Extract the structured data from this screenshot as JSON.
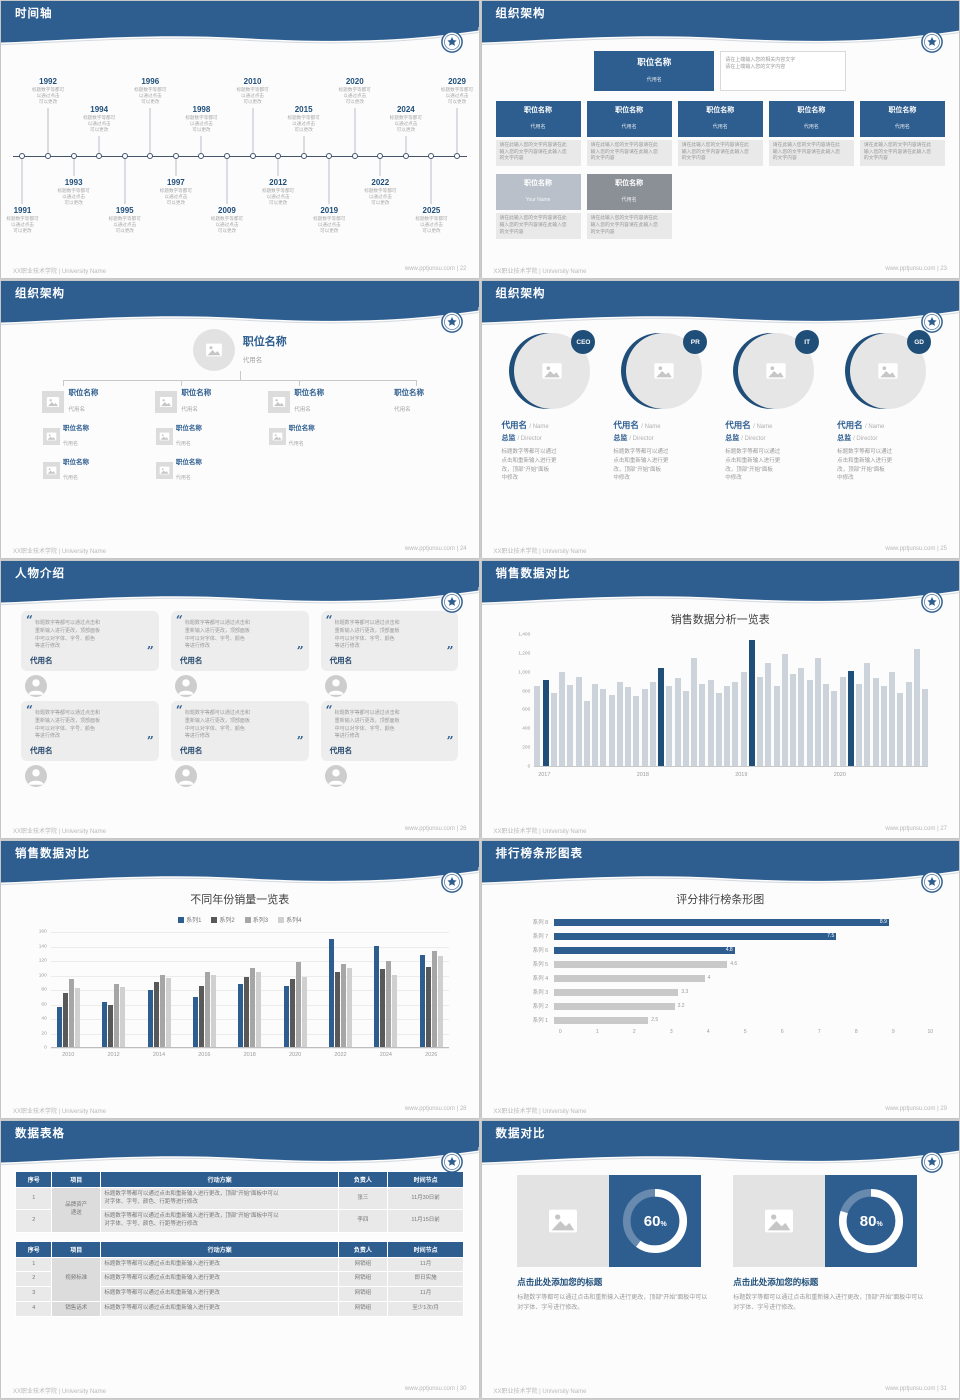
{
  "theme": {
    "header_blue": "#2e5e8f",
    "dark_blue": "#1f4e79",
    "bar_gray": "#ccd3da"
  },
  "footer": {
    "school": "XX职业技术学院 | University Name",
    "site": "www.pptjunsu.com",
    "sep": " | "
  },
  "slides": {
    "timeline": {
      "title": "时间轴",
      "page": "22",
      "desc": "标题数字等都可\n以通过点击\n可以更改",
      "top_years": [
        "1992",
        "1994",
        "1996",
        "1998",
        "2010",
        "2015",
        "2020",
        "2024",
        "2029"
      ],
      "bottom_years": [
        "1991",
        "1993",
        "1995",
        "1997",
        "2009",
        "2012",
        "2019",
        "2022",
        "2025"
      ]
    },
    "org_boxes": {
      "title": "组织架构",
      "page": "23",
      "root": {
        "name": "职位名称",
        "sub": "代用名"
      },
      "root_note": "请在上端输入您的相关内容文字\n请在上端输入您的文字内容",
      "row1": [
        {
          "name": "职位名称",
          "sub": "代用名"
        },
        {
          "name": "职位名称",
          "sub": "代用名"
        },
        {
          "name": "职位名称",
          "sub": "代用名"
        },
        {
          "name": "职位名称",
          "sub": "代用名"
        },
        {
          "name": "职位名称",
          "sub": "代用名"
        }
      ],
      "row2": [
        {
          "name": "职位名称",
          "sub": "Your Name"
        },
        {
          "name": "职位名称",
          "sub": "代用名"
        }
      ],
      "note": "请在此输入您的文字内容请在此\n输入您的文字内容请在此输入您\n的文字内容"
    },
    "org_tree": {
      "title": "组织架构",
      "page": "24",
      "root": {
        "name": "职位名称",
        "sub": "代用名"
      },
      "columns": [
        {
          "name": "职位名称",
          "sub": "代用名",
          "icon": true,
          "children": [
            {
              "name": "职位名称",
              "sub": "代用名"
            },
            {
              "name": "职位名称",
              "sub": "代用名"
            }
          ]
        },
        {
          "name": "职位名称",
          "sub": "代用名",
          "icon": true,
          "children": [
            {
              "name": "职位名称",
              "sub": "代用名"
            },
            {
              "name": "职位名称",
              "sub": "代用名"
            }
          ]
        },
        {
          "name": "职位名称",
          "sub": "代用名",
          "icon": true,
          "children": [
            {
              "name": "职位名称",
              "sub": "代用名"
            }
          ]
        },
        {
          "name": "职位名称",
          "sub": "代用名",
          "icon": false,
          "children": []
        }
      ]
    },
    "org_circles": {
      "title": "组织架构",
      "page": "25",
      "desc": "标题数字等都可以通过\n点击和重新输入进行更\n改，顶部“开始”面板\n中修改",
      "members": [
        {
          "badge": "CEO",
          "name": "代用名",
          "name_en": "Name",
          "role": "总监",
          "role_en": "Director"
        },
        {
          "badge": "PR",
          "name": "代用名",
          "name_en": "Name",
          "role": "总监",
          "role_en": "Director"
        },
        {
          "badge": "IT",
          "name": "代用名",
          "name_en": "Name",
          "role": "总监",
          "role_en": "Director"
        },
        {
          "badge": "GD",
          "name": "代用名",
          "name_en": "Name",
          "role": "总监",
          "role_en": "Director"
        }
      ]
    },
    "people": {
      "title": "人物介绍",
      "page": "26",
      "quote": "标题数字等都可以通过点击和\n重新输入进行更改，顶部面板\n中可以对字体、字号、颜色\n等进行修改",
      "cards": [
        {
          "name": "代用名"
        },
        {
          "name": "代用名"
        },
        {
          "name": "代用名"
        },
        {
          "name": "代用名"
        },
        {
          "name": "代用名"
        },
        {
          "name": "代用名"
        }
      ]
    },
    "sales_monthly": {
      "title": "销售数据对比",
      "page": "27"
    },
    "sales_yearly": {
      "title": "销售数据对比",
      "page": "28"
    },
    "ranking": {
      "title": "排行榜条形图表",
      "page": "29"
    },
    "tables": {
      "title": "数据表格",
      "page": "30",
      "headers": [
        "序号",
        "项目",
        "行动方案",
        "负责人",
        "时间节点"
      ],
      "table1": {
        "group": "品牌资产\n递送",
        "plan": "标题数字等都可以通过点击和重新输入进行更改，顶部“开始”面板中可以\n对字体、字号、颜色、行距等进行修改",
        "rows": [
          {
            "no": "1",
            "owner": "张三",
            "time": "11月30日前"
          },
          {
            "no": "2",
            "owner": "李四",
            "time": "11月15日前"
          }
        ]
      },
      "table2": {
        "plan": "标题数字等都可以通过点击和重新输入进行更改",
        "groups": [
          {
            "label": "视频标准",
            "span": 3
          },
          {
            "label": "销售话术",
            "span": 1
          }
        ],
        "rows": [
          {
            "no": "1",
            "owner": "网销组",
            "time": "11月"
          },
          {
            "no": "2",
            "owner": "网销组",
            "time": "即日实施"
          },
          {
            "no": "3",
            "owner": "网销组",
            "time": "11月"
          },
          {
            "no": "4",
            "owner": "网销组",
            "time": "至少1次/月"
          }
        ]
      }
    },
    "compare": {
      "title": "数据对比",
      "page": "31",
      "panels": [
        {
          "percent": "60",
          "heading": "点击此处添加您的标题",
          "desc": "标题数字等都可以通过点击和重新输入进行更改，顶部“开始”面板中可以对字体、字号进行修改。"
        },
        {
          "percent": "80",
          "heading": "点击此处添加您的标题",
          "desc": "标题数字等都可以通过点击和重新输入进行更改，顶部“开始”面板中可以对字体、字号进行修改。"
        }
      ]
    }
  },
  "chart_data": [
    {
      "id": "monthly-sales",
      "type": "bar",
      "title": "销售数据分析一览表",
      "x_groups": [
        "2017",
        "2018",
        "2019",
        "2020"
      ],
      "values": [
        850,
        920,
        780,
        1000,
        870,
        950,
        700,
        880,
        820,
        760,
        900,
        840,
        750,
        820,
        900,
        1050,
        860,
        940,
        800,
        1150,
        880,
        920,
        780,
        850,
        900,
        1000,
        1350,
        950,
        1100,
        860,
        1200,
        980,
        1050,
        920,
        1150,
        880,
        800,
        950,
        1020,
        880,
        1100,
        940,
        860,
        1000,
        780,
        900,
        1250,
        820
      ],
      "highlight_indices": [
        1,
        15,
        26,
        38
      ],
      "ylim": [
        0,
        1400
      ],
      "yticks": [
        "1,400",
        "1,200",
        "1,000",
        "800",
        "600",
        "400",
        "200",
        "0"
      ],
      "bar_color": "#ccd3da",
      "highlight_color": "#1f4e79",
      "legend_position": "none",
      "grid": false
    },
    {
      "id": "yearly-sales",
      "type": "bar",
      "title": "不同年份销量一览表",
      "categories": [
        "2010",
        "2012",
        "2014",
        "2016",
        "2018",
        "2020",
        "2022",
        "2024",
        "2026"
      ],
      "series": [
        {
          "name": "系列1",
          "color": "#2e5e8f",
          "values": [
            55,
            62,
            80,
            70,
            88,
            85,
            150,
            140,
            128
          ]
        },
        {
          "name": "系列2",
          "color": "#595959",
          "values": [
            75,
            58,
            90,
            85,
            98,
            95,
            105,
            108,
            112
          ]
        },
        {
          "name": "系列3",
          "color": "#a6a6a6",
          "values": [
            95,
            88,
            100,
            105,
            110,
            118,
            115,
            120,
            133
          ]
        },
        {
          "name": "系列4",
          "color": "#d0d0d0",
          "values": [
            82,
            84,
            96,
            100,
            104,
            98,
            110,
            100,
            126
          ]
        }
      ],
      "ylim": [
        0,
        160
      ],
      "yticks": [
        "160",
        "140",
        "120",
        "100",
        "80",
        "60",
        "40",
        "20",
        "0"
      ],
      "legend_position": "top",
      "grid": true
    },
    {
      "id": "ranking",
      "type": "bar-horizontal",
      "title": "评分排行榜条形图",
      "categories": [
        "系列 8",
        "系列 7",
        "系列 6",
        "系列 5",
        "系列 4",
        "系列 3",
        "系列 2",
        "系列 1"
      ],
      "values": [
        8.9,
        7.5,
        4.8,
        4.6,
        4,
        3.3,
        3.2,
        2.5
      ],
      "value_labels": [
        "8.9",
        "7.5",
        "4.8",
        "4.6",
        "4",
        "3.3",
        "3.2",
        "2.5"
      ],
      "colors": [
        "#2e5e8f",
        "#2e5e8f",
        "#2e5e8f",
        "#c9c9c9",
        "#c9c9c9",
        "#c9c9c9",
        "#c9c9c9",
        "#c9c9c9"
      ],
      "xlim": [
        0,
        10
      ],
      "xticks": [
        "0",
        "1",
        "2",
        "3",
        "4",
        "5",
        "6",
        "7",
        "8",
        "9",
        "10"
      ],
      "legend_position": "none",
      "grid": false
    },
    {
      "id": "donuts",
      "type": "pie",
      "items": [
        {
          "percent": 60,
          "label": "60"
        },
        {
          "percent": 80,
          "label": "80"
        }
      ]
    }
  ]
}
